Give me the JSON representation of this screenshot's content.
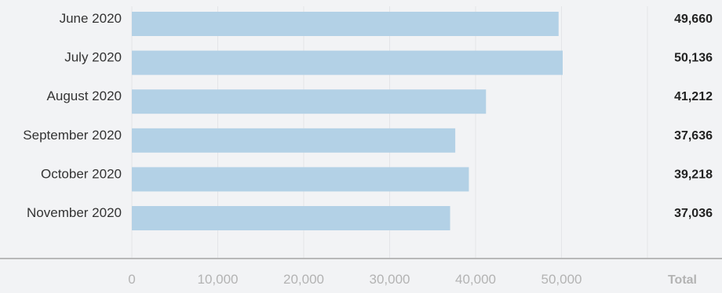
{
  "chart_data": {
    "type": "bar",
    "orientation": "horizontal",
    "categories": [
      "June 2020",
      "July 2020",
      "August 2020",
      "September 2020",
      "October 2020",
      "November 2020"
    ],
    "values": [
      49660,
      50136,
      41212,
      37636,
      39218,
      37036
    ],
    "value_labels": [
      "49,660",
      "50,136",
      "41,212",
      "37,636",
      "39,218",
      "37,036"
    ],
    "xticks": [
      0,
      10000,
      20000,
      30000,
      40000,
      50000
    ],
    "xtick_labels": [
      "0",
      "10,000",
      "20,000",
      "30,000",
      "40,000",
      "50,000"
    ],
    "xlim": [
      0,
      60000
    ],
    "total_label": "Total",
    "grid": true,
    "colors": {
      "bar": "#b3d1e6",
      "grid": "#e4e5e8",
      "axis": "#b8b8b8",
      "background": "#f2f3f5"
    }
  }
}
